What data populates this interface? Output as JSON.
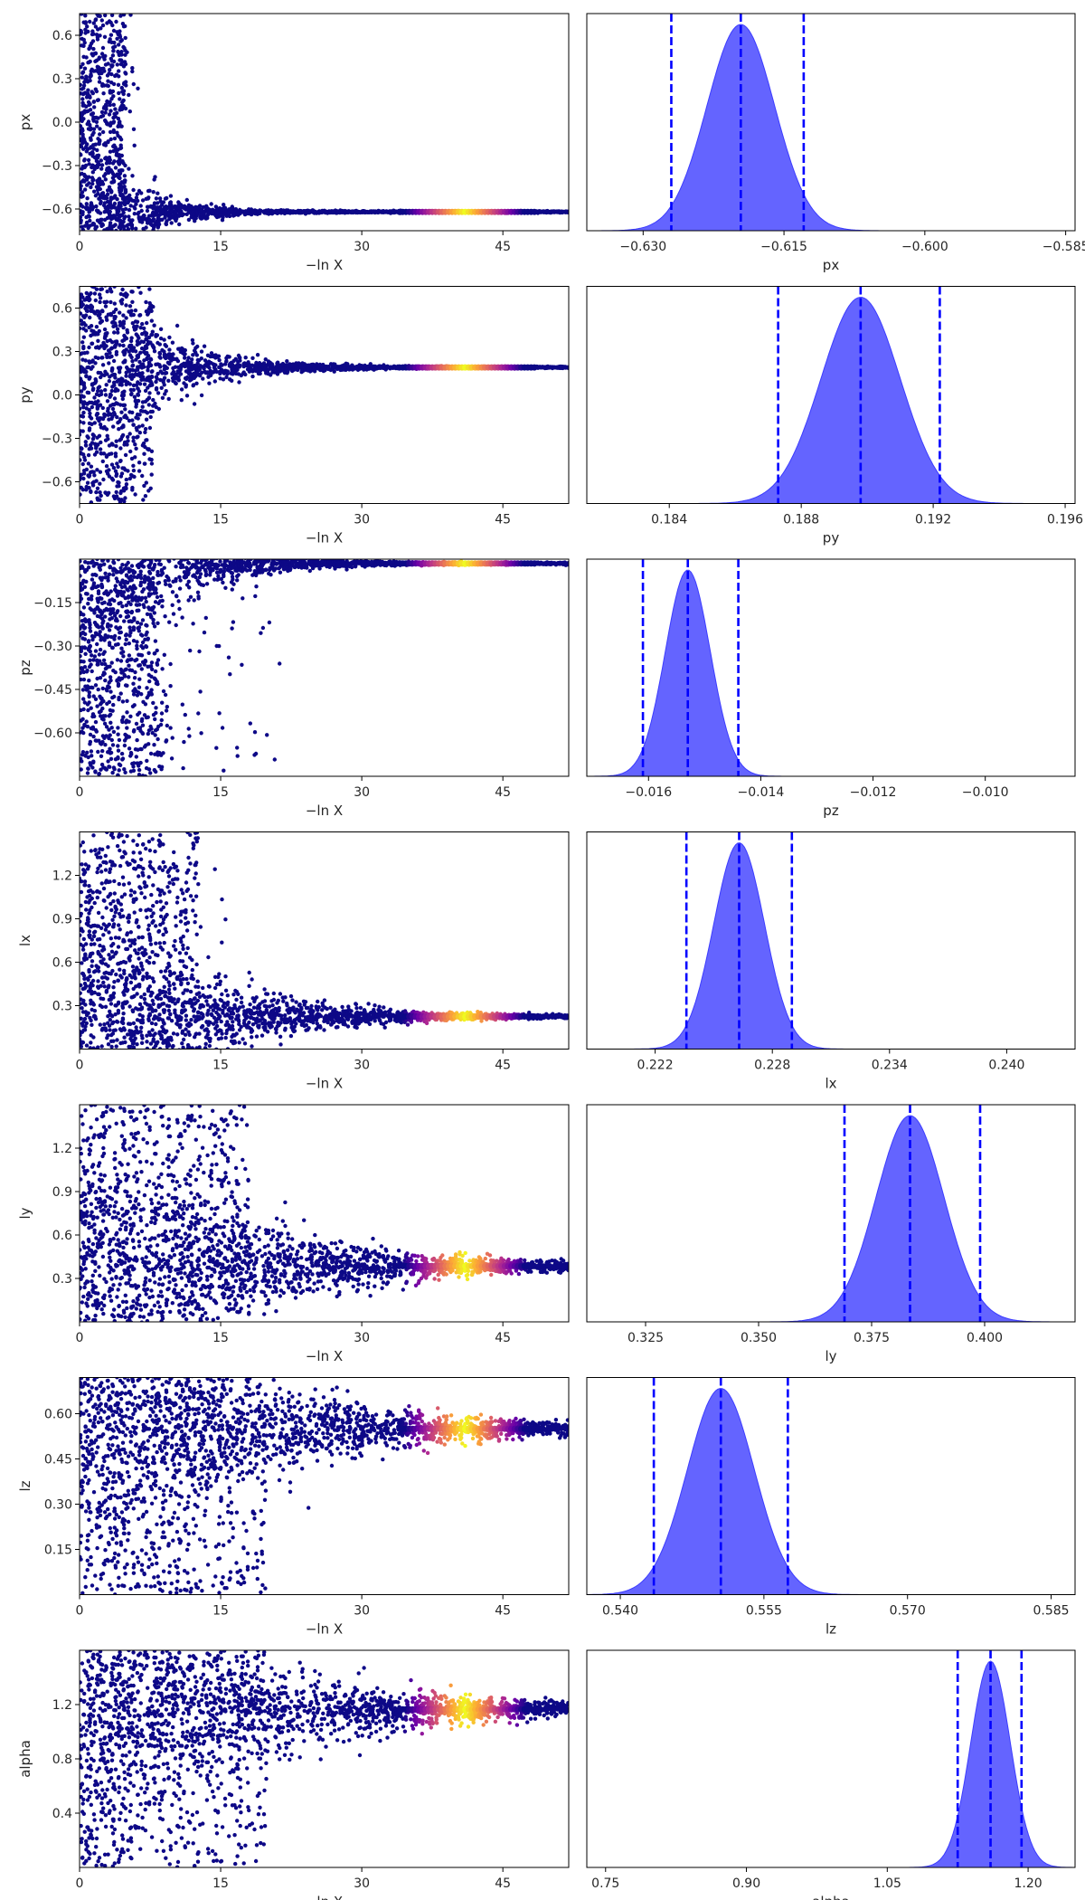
{
  "figure": {
    "trace_xlabel": "−ln X",
    "scatter_colormap": [
      "#0d0887",
      "#0d0887",
      "#6a00a8",
      "#b12a90",
      "#e16462",
      "#fca636",
      "#f0f921"
    ],
    "hist_fill": "#6464ff",
    "hist_edge": "#3c3cff",
    "quantile_line": "#0000ff"
  },
  "chart_data": [
    {
      "type": "scatter",
      "panel": "trace-px",
      "ylabel": "px",
      "xlim": [
        0,
        52
      ],
      "ylim": [
        -0.75,
        0.75
      ],
      "xticks": [
        "0",
        "15",
        "30",
        "45"
      ],
      "yticks": [
        "0.6",
        "0.3",
        "0.0",
        "−0.3",
        "−0.6"
      ],
      "converged_value": -0.62,
      "converge_at": 9
    },
    {
      "type": "area",
      "panel": "posterior-px",
      "xlabel": "px",
      "xlim": [
        -0.636,
        -0.584
      ],
      "xticks": [
        "−0.630",
        "−0.615",
        "−0.600",
        "−0.585"
      ],
      "quantiles": [
        -0.627,
        -0.6196,
        -0.6129
      ],
      "peak": -0.6196,
      "sigma": 0.0036
    },
    {
      "type": "scatter",
      "panel": "trace-py",
      "ylabel": "py",
      "xlim": [
        0,
        52
      ],
      "ylim": [
        -0.75,
        0.75
      ],
      "xticks": [
        "0",
        "15",
        "30",
        "45"
      ],
      "yticks": [
        "0.6",
        "0.3",
        "0.0",
        "−0.3",
        "−0.6"
      ],
      "converged_value": 0.19,
      "converge_at": 14
    },
    {
      "type": "area",
      "panel": "posterior-py",
      "xlabel": "py",
      "xlim": [
        0.1815,
        0.1963
      ],
      "xticks": [
        "0.184",
        "0.188",
        "0.192",
        "0.196"
      ],
      "quantiles": [
        0.1873,
        0.1898,
        0.1922
      ],
      "peak": 0.1898,
      "sigma": 0.0012
    },
    {
      "type": "scatter",
      "panel": "trace-pz",
      "ylabel": "pz",
      "xlim": [
        0,
        52
      ],
      "ylim": [
        -0.75,
        0.0
      ],
      "xticks": [
        "0",
        "15",
        "30",
        "45"
      ],
      "yticks": [
        "−0.15",
        "−0.30",
        "−0.45",
        "−0.60"
      ],
      "converged_value": -0.015,
      "converge_at": 16
    },
    {
      "type": "area",
      "panel": "posterior-pz",
      "xlabel": "pz",
      "xlim": [
        -0.0171,
        -0.0084
      ],
      "xticks": [
        "−0.016",
        "−0.014",
        "−0.012",
        "−0.010"
      ],
      "quantiles": [
        -0.0161,
        -0.0153,
        -0.0144
      ],
      "peak": -0.0153,
      "sigma": 0.0004
    },
    {
      "type": "scatter",
      "panel": "trace-lx",
      "ylabel": "lx",
      "xlim": [
        0,
        52
      ],
      "ylim": [
        0.0,
        1.5
      ],
      "xticks": [
        "0",
        "15",
        "30",
        "45"
      ],
      "yticks": [
        "1.2",
        "0.9",
        "0.6",
        "0.3"
      ],
      "converged_value": 0.225,
      "converge_at": 23
    },
    {
      "type": "area",
      "panel": "posterior-lx",
      "xlabel": "lx",
      "xlim": [
        0.2185,
        0.2435
      ],
      "xticks": [
        "0.222",
        "0.228",
        "0.234",
        "0.240"
      ],
      "quantiles": [
        0.2236,
        0.2263,
        0.229
      ],
      "peak": 0.2263,
      "sigma": 0.0013
    },
    {
      "type": "scatter",
      "panel": "trace-ly",
      "ylabel": "ly",
      "xlim": [
        0,
        52
      ],
      "ylim": [
        0.0,
        1.5
      ],
      "xticks": [
        "0",
        "15",
        "30",
        "45"
      ],
      "yticks": [
        "1.2",
        "0.9",
        "0.6",
        "0.3"
      ],
      "converged_value": 0.385,
      "converge_at": 33
    },
    {
      "type": "area",
      "panel": "posterior-ly",
      "xlabel": "ly",
      "xlim": [
        0.312,
        0.42
      ],
      "xticks": [
        "0.325",
        "0.350",
        "0.375",
        "0.400"
      ],
      "quantiles": [
        0.369,
        0.3835,
        0.399
      ],
      "peak": 0.3835,
      "sigma": 0.0075
    },
    {
      "type": "scatter",
      "panel": "trace-lz",
      "ylabel": "lz",
      "xlim": [
        0,
        52
      ],
      "ylim": [
        0.0,
        0.72
      ],
      "xticks": [
        "0",
        "15",
        "30",
        "45"
      ],
      "yticks": [
        "0.60",
        "0.45",
        "0.30",
        "0.15"
      ],
      "converged_value": 0.55,
      "converge_at": 36
    },
    {
      "type": "area",
      "panel": "posterior-lz",
      "xlabel": "lz",
      "xlim": [
        0.5365,
        0.5875
      ],
      "xticks": [
        "0.540",
        "0.555",
        "0.570",
        "0.585"
      ],
      "quantiles": [
        0.5435,
        0.5505,
        0.5575
      ],
      "peak": 0.5505,
      "sigma": 0.0035
    },
    {
      "type": "scatter",
      "panel": "trace-alpha",
      "ylabel": "alpha",
      "xlim": [
        0,
        52
      ],
      "ylim": [
        0.0,
        1.6
      ],
      "xticks": [
        "0",
        "15",
        "30",
        "45"
      ],
      "yticks": [
        "1.2",
        "0.8",
        "0.4"
      ],
      "converged_value": 1.165,
      "converge_at": 36
    },
    {
      "type": "area",
      "panel": "posterior-alpha",
      "xlabel": "alpha",
      "xlim": [
        0.73,
        1.25
      ],
      "xticks": [
        "0.75",
        "0.90",
        "1.05",
        "1.20"
      ],
      "quantiles": [
        1.125,
        1.16,
        1.193
      ],
      "peak": 1.16,
      "sigma": 0.021
    }
  ]
}
